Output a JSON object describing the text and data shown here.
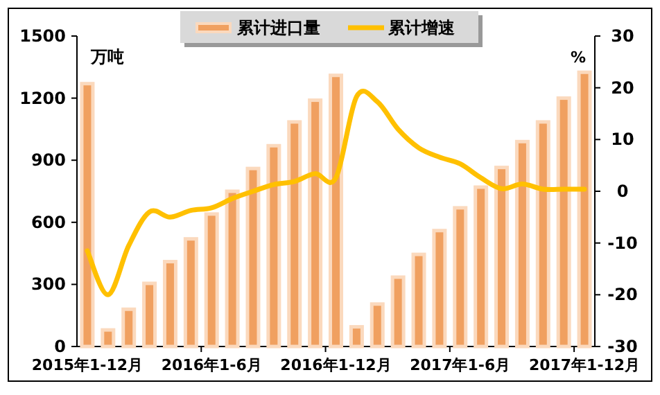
{
  "chart_data": {
    "type": "bar",
    "categories": [
      "2015年1-12月",
      null,
      null,
      null,
      null,
      null,
      "2016年1-6月",
      null,
      null,
      null,
      null,
      null,
      "2016年1-12月",
      null,
      null,
      null,
      null,
      null,
      "2017年1-6月",
      null,
      null,
      null,
      null,
      null,
      "2017年1-12月"
    ],
    "series": [
      {
        "name": "累计进口量",
        "color": "#f0a060",
        "values": [
          1270,
          80,
          180,
          305,
          410,
          520,
          640,
          750,
          860,
          970,
          1085,
          1190,
          1310,
          95,
          205,
          335,
          445,
          560,
          670,
          770,
          865,
          990,
          1085,
          1200,
          1325
        ]
      },
      {
        "name": "累计增速",
        "type": "line",
        "axis": "y2",
        "color": "#ffc000",
        "values": [
          -11.5,
          -20,
          -10.5,
          -4,
          -5,
          -3.7,
          -3.2,
          -1.4,
          0,
          1.3,
          1.9,
          3.4,
          2.6,
          18.3,
          17.3,
          12,
          8.4,
          6.6,
          5.3,
          2.6,
          0.5,
          1.4,
          0.4,
          0.4,
          0.4
        ]
      }
    ],
    "ylim": [
      0,
      1500
    ],
    "yticks": [
      0,
      300,
      600,
      900,
      1200,
      1500
    ],
    "y2lim": [
      -30,
      30
    ],
    "y2ticks": [
      -30,
      -20,
      -10,
      0,
      10,
      20,
      30
    ],
    "annotations": [
      "万吨",
      "%"
    ],
    "legend": "top"
  }
}
